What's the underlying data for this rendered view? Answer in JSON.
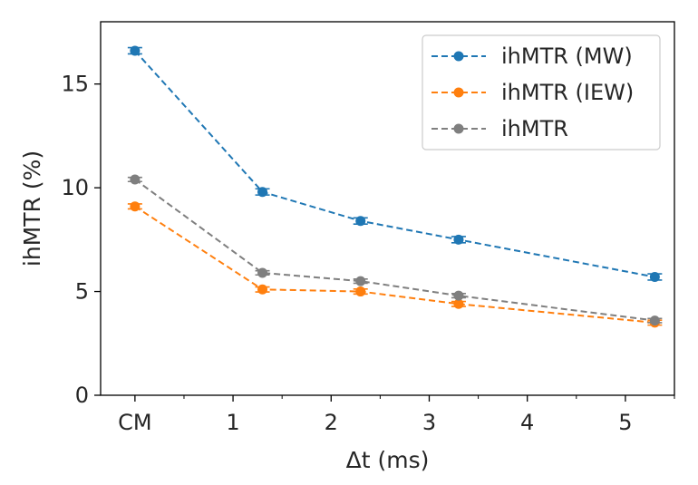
{
  "chart_data": {
    "type": "line",
    "title": "",
    "xlabel": "Δt (ms)",
    "ylabel": "ihMTR (%)",
    "xlim": [
      -0.35,
      5.5
    ],
    "ylim": [
      0,
      18
    ],
    "xticks": [
      {
        "value": 0,
        "label": "CM"
      },
      {
        "value": 1,
        "label": "1"
      },
      {
        "value": 2,
        "label": "2"
      },
      {
        "value": 3,
        "label": "3"
      },
      {
        "value": 4,
        "label": "4"
      },
      {
        "value": 5,
        "label": "5"
      }
    ],
    "xminor": [
      0.5,
      1.5,
      2.5,
      3.5,
      4.5,
      5.5
    ],
    "yticks": [
      0,
      5,
      10,
      15
    ],
    "x": [
      0,
      1.3,
      2.3,
      3.3,
      5.3
    ],
    "series": [
      {
        "name": "ihMTR (MW)",
        "color": "#1f77b4",
        "values": [
          16.6,
          9.8,
          8.4,
          7.5,
          5.7
        ],
        "errors": [
          0.15,
          0.15,
          0.15,
          0.15,
          0.15
        ]
      },
      {
        "name": "ihMTR (IEW)",
        "color": "#ff7f0e",
        "values": [
          9.1,
          5.1,
          5.0,
          4.4,
          3.5
        ],
        "errors": [
          0.12,
          0.12,
          0.12,
          0.12,
          0.12
        ]
      },
      {
        "name": "ihMTR",
        "color": "#7f7f7f",
        "values": [
          10.4,
          5.9,
          5.5,
          4.8,
          3.6
        ],
        "errors": [
          0.1,
          0.1,
          0.1,
          0.1,
          0.1
        ]
      }
    ],
    "legend": "top-right",
    "grid": false
  }
}
